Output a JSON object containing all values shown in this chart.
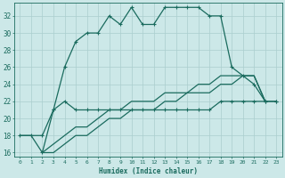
{
  "xlabel": "Humidex (Indice chaleur)",
  "x_all": [
    0,
    1,
    2,
    3,
    4,
    5,
    6,
    7,
    8,
    9,
    10,
    11,
    12,
    13,
    14,
    15,
    16,
    17,
    18,
    19,
    20,
    21,
    22,
    23
  ],
  "line_top_x": [
    0,
    1,
    2,
    3,
    4,
    5,
    6,
    7,
    8,
    9,
    10,
    11,
    12,
    13,
    14,
    15,
    16,
    17,
    18,
    19,
    20,
    21,
    22,
    23
  ],
  "line_top_y": [
    18,
    18,
    18,
    21,
    26,
    29,
    30,
    30,
    32,
    31,
    33,
    31,
    31,
    33,
    33,
    33,
    33,
    32,
    32,
    26,
    25,
    24,
    22,
    22
  ],
  "line_mid_x": [
    2,
    3,
    4,
    5,
    6,
    7,
    8,
    9,
    10,
    11,
    12,
    13,
    14,
    15,
    16,
    17,
    18,
    19,
    20,
    21,
    22,
    23
  ],
  "line_mid_y": [
    16,
    21,
    22,
    21,
    21,
    21,
    21,
    21,
    21,
    21,
    21,
    21,
    21,
    21,
    21,
    21,
    22,
    22,
    22,
    22,
    22,
    22
  ],
  "line_diag1_x": [
    0,
    1,
    2,
    3,
    4,
    5,
    6,
    7,
    8,
    9,
    10,
    11,
    12,
    13,
    14,
    15,
    16,
    17,
    18,
    19,
    20,
    21,
    22
  ],
  "line_diag1_y": [
    18,
    18,
    16,
    17,
    18,
    19,
    19,
    20,
    21,
    21,
    22,
    22,
    22,
    23,
    23,
    23,
    24,
    24,
    25,
    25,
    25,
    25,
    22
  ],
  "line_diag2_x": [
    2,
    3,
    4,
    5,
    6,
    7,
    8,
    9,
    10,
    11,
    12,
    13,
    14,
    15,
    16,
    17,
    18,
    19,
    20,
    21,
    22
  ],
  "line_diag2_y": [
    16,
    16,
    17,
    18,
    18,
    19,
    20,
    20,
    21,
    21,
    21,
    22,
    22,
    23,
    23,
    23,
    24,
    24,
    25,
    25,
    22
  ],
  "ylim": [
    15.5,
    33.5
  ],
  "xlim": [
    -0.5,
    23.5
  ],
  "yticks": [
    16,
    18,
    20,
    22,
    24,
    26,
    28,
    30,
    32
  ],
  "xticks": [
    0,
    1,
    2,
    3,
    4,
    5,
    6,
    7,
    8,
    9,
    10,
    11,
    12,
    13,
    14,
    15,
    16,
    17,
    18,
    19,
    20,
    21,
    22,
    23
  ],
  "line_color": "#1a6b5e",
  "bg_color": "#cce8e8",
  "grid_color": "#aacece"
}
